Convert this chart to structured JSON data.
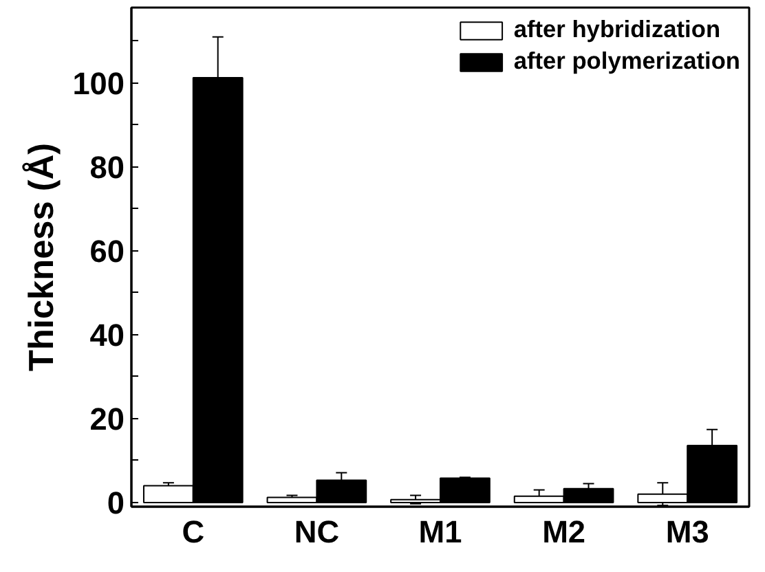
{
  "chart_data": {
    "type": "bar",
    "ylabel": "Thickness (Å)",
    "categories": [
      "C",
      "NC",
      "M1",
      "M2",
      "M3"
    ],
    "series": [
      {
        "name": "after hybridization",
        "color": "#ffffff",
        "values": [
          4.0,
          1.2,
          0.7,
          1.5,
          2.0
        ],
        "errors": [
          0.7,
          0.5,
          1.0,
          1.5,
          2.7
        ]
      },
      {
        "name": "after polymerization",
        "color": "#000000",
        "values": [
          101.3,
          5.3,
          5.8,
          3.3,
          13.6
        ],
        "errors": [
          9.7,
          1.8,
          0.2,
          1.2,
          3.8
        ]
      }
    ],
    "ylim": [
      -1,
      118
    ],
    "yticks": [
      0,
      {
        "value": 10,
        "label": null
      },
      20,
      {
        "value": 30,
        "label": null
      },
      40,
      {
        "value": 50,
        "label": null
      },
      60,
      {
        "value": 70,
        "label": null
      },
      80,
      {
        "value": 90,
        "label": null
      },
      100,
      {
        "value": 110,
        "label": null
      }
    ],
    "legend": "top right",
    "grid": false
  }
}
